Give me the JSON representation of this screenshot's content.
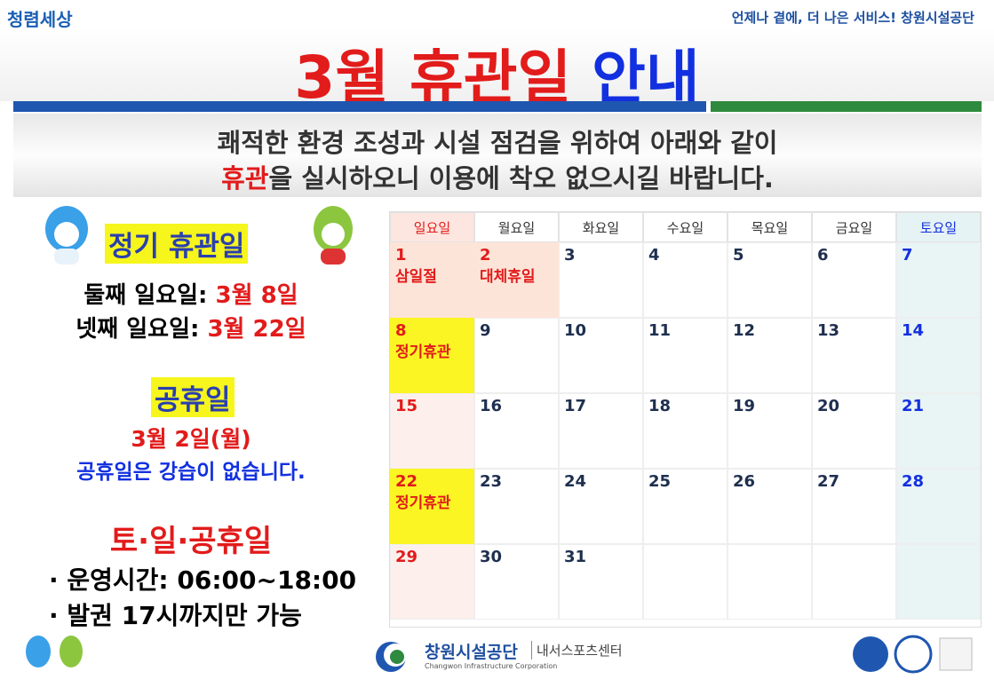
{
  "header": {
    "logo": "청렴세상",
    "slogan": "언제나 곁에, 더 나은 서비스! 창원시설공단"
  },
  "title": {
    "main": "3월 휴관일",
    "accent": "안내"
  },
  "notice": {
    "line1": "쾌적한 환경 조성과 시설 점검을 위하여 아래와 같이",
    "line2_highlight": "휴관",
    "line2_rest": "을 실시하오니 이용에 착오 없으시길 바랍니다."
  },
  "regular": {
    "heading": "정기 휴관일",
    "items": [
      {
        "label": "둘째 일요일:",
        "date": "3월 8일"
      },
      {
        "label": "넷째 일요일:",
        "date": "3월 22일"
      }
    ]
  },
  "holiday": {
    "heading": "공휴일",
    "date": "3월 2일(월)",
    "note": "공휴일은 강습이 없습니다."
  },
  "weekend": {
    "heading": "토·일·공휴일",
    "items": [
      "· 운영시간: 06:00~18:00",
      "· 발권 17시까지만 가능"
    ]
  },
  "calendar": {
    "weekdays": [
      "일요일",
      "월요일",
      "화요일",
      "수요일",
      "목요일",
      "금요일",
      "토요일"
    ],
    "days": [
      {
        "day": 1,
        "label": "삼일절"
      },
      {
        "day": 2,
        "label": "대체휴일"
      },
      {
        "day": 3
      },
      {
        "day": 4
      },
      {
        "day": 5
      },
      {
        "day": 6
      },
      {
        "day": 7
      },
      {
        "day": 8,
        "label": "정기휴관"
      },
      {
        "day": 9
      },
      {
        "day": 10
      },
      {
        "day": 11
      },
      {
        "day": 12
      },
      {
        "day": 13
      },
      {
        "day": 14
      },
      {
        "day": 15
      },
      {
        "day": 16
      },
      {
        "day": 17
      },
      {
        "day": 18
      },
      {
        "day": 19
      },
      {
        "day": 20
      },
      {
        "day": 21
      },
      {
        "day": 22,
        "label": "정기휴관"
      },
      {
        "day": 23
      },
      {
        "day": 24
      },
      {
        "day": 25
      },
      {
        "day": 26
      },
      {
        "day": 27
      },
      {
        "day": 28
      },
      {
        "day": 29
      },
      {
        "day": 30
      },
      {
        "day": 31
      }
    ]
  },
  "footer": {
    "org": "창원시설공단",
    "org_en": "Changwon Infrastructure Corporation",
    "center": "내서스포츠센터"
  }
}
